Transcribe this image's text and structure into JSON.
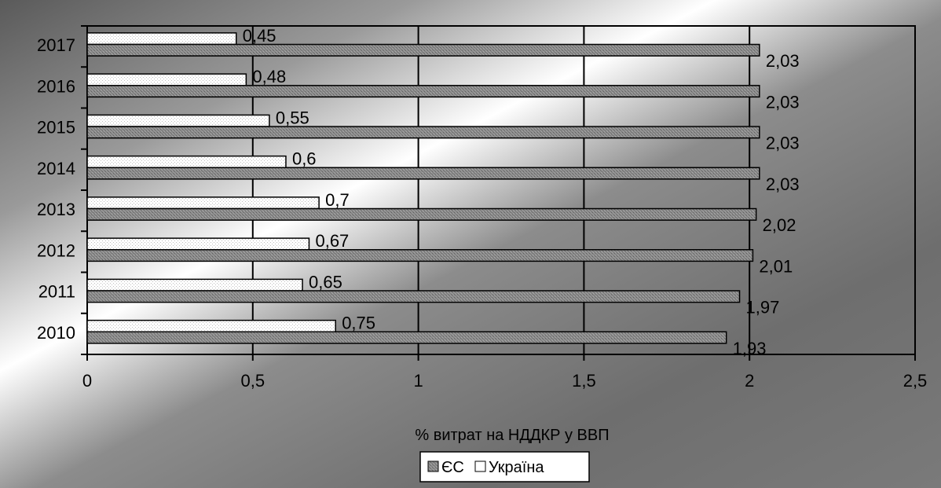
{
  "chart_data": {
    "type": "bar",
    "orientation": "horizontal",
    "categories": [
      "2010",
      "2011",
      "2012",
      "2013",
      "2014",
      "2015",
      "2016",
      "2017"
    ],
    "series": [
      {
        "name": "Україна",
        "values": [
          0.75,
          0.65,
          0.67,
          0.7,
          0.6,
          0.55,
          0.48,
          0.45
        ],
        "labels": [
          "0,75",
          "0,65",
          "0,67",
          "0,7",
          "0,6",
          "0,55",
          "0,48",
          "0,45"
        ],
        "color": "#ffffff"
      },
      {
        "name": "ЄС",
        "values": [
          1.93,
          1.97,
          2.01,
          2.02,
          2.03,
          2.03,
          2.03,
          2.03
        ],
        "labels": [
          "1,93",
          "1,97",
          "2,01",
          "2,02",
          "2,03",
          "2,03",
          "2,03",
          "2,03"
        ],
        "color": "#808080"
      }
    ],
    "xlabel": "% витрат на НДДКР у ВВП",
    "xlim": [
      0,
      2.5
    ],
    "xticks": [
      0,
      0.5,
      1,
      1.5,
      2,
      2.5
    ],
    "xtick_labels": [
      "0",
      "0,5",
      "1",
      "1,5",
      "2",
      "2,5"
    ],
    "grid": true,
    "legend_position": "bottom",
    "legend_order": [
      "ЄС",
      "Україна"
    ]
  }
}
